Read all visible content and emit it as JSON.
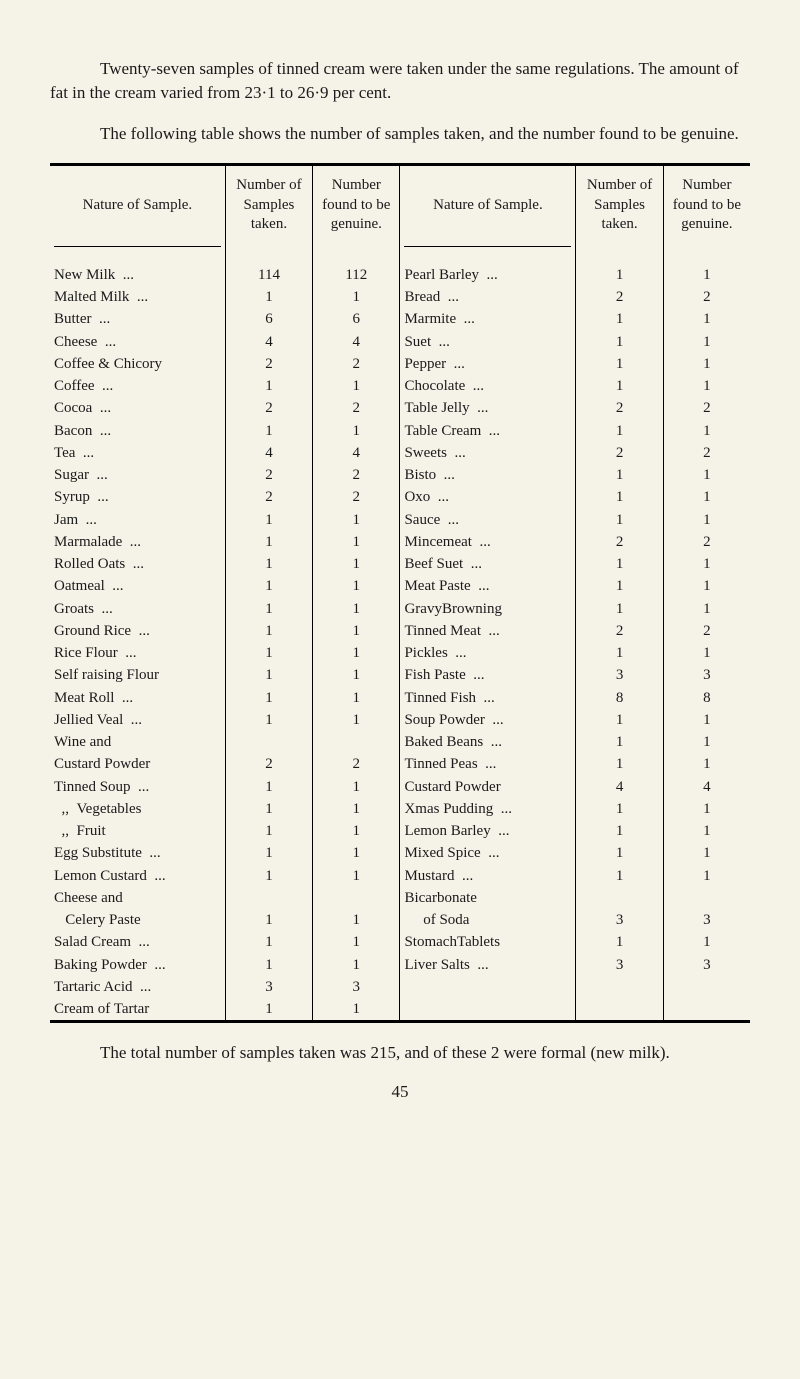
{
  "intro1": "Twenty-seven samples of tinned cream were taken under the same regulations. The amount of fat in the cream varied from 23·1 to 26·9 per cent.",
  "intro2": "The following table shows the number of samples taken, and the number found to be genuine.",
  "headers": {
    "nature": "Nature of Sample.",
    "samples": "Number of Samples taken.",
    "found": "Number found to be genuine."
  },
  "left_rows": [
    {
      "n": "New Milk",
      "s": "114",
      "f": "112"
    },
    {
      "n": "Malted Milk",
      "s": "1",
      "f": "1"
    },
    {
      "n": "Butter",
      "s": "6",
      "f": "6"
    },
    {
      "n": "Cheese",
      "s": "4",
      "f": "4"
    },
    {
      "n": "Coffee & Chicory",
      "s": "2",
      "f": "2"
    },
    {
      "n": "Coffee",
      "s": "1",
      "f": "1"
    },
    {
      "n": "Cocoa",
      "s": "2",
      "f": "2"
    },
    {
      "n": "Bacon",
      "s": "1",
      "f": "1"
    },
    {
      "n": "Tea",
      "s": "4",
      "f": "4"
    },
    {
      "n": "Sugar",
      "s": "2",
      "f": "2"
    },
    {
      "n": "Syrup",
      "s": "2",
      "f": "2"
    },
    {
      "n": "Jam",
      "s": "1",
      "f": "1"
    },
    {
      "n": "Marmalade",
      "s": "1",
      "f": "1"
    },
    {
      "n": "Rolled Oats",
      "s": "1",
      "f": "1"
    },
    {
      "n": "Oatmeal",
      "s": "1",
      "f": "1"
    },
    {
      "n": "Groats",
      "s": "1",
      "f": "1"
    },
    {
      "n": "Ground Rice",
      "s": "1",
      "f": "1"
    },
    {
      "n": "Rice Flour",
      "s": "1",
      "f": "1"
    },
    {
      "n": "Self raising Flour",
      "s": "1",
      "f": "1"
    },
    {
      "n": "Meat Roll",
      "s": "1",
      "f": "1"
    },
    {
      "n": "Jellied Veal",
      "s": "1",
      "f": "1"
    },
    {
      "n": "Wine and",
      "s": "",
      "f": ""
    },
    {
      "n": "Custard Powder",
      "s": "2",
      "f": "2"
    },
    {
      "n": "Tinned Soup",
      "s": "1",
      "f": "1"
    },
    {
      "n": "  ,,  Vegetables",
      "s": "1",
      "f": "1"
    },
    {
      "n": "  ,,  Fruit",
      "s": "1",
      "f": "1"
    },
    {
      "n": "Egg Substitute",
      "s": "1",
      "f": "1"
    },
    {
      "n": "Lemon Custard",
      "s": "1",
      "f": "1"
    },
    {
      "n": "Cheese and",
      "s": "",
      "f": ""
    },
    {
      "n": "   Celery Paste",
      "s": "1",
      "f": "1"
    },
    {
      "n": "Salad Cream",
      "s": "1",
      "f": "1"
    },
    {
      "n": "Baking Powder",
      "s": "1",
      "f": "1"
    },
    {
      "n": "Tartaric Acid",
      "s": "3",
      "f": "3"
    },
    {
      "n": "Cream of Tartar",
      "s": "1",
      "f": "1"
    }
  ],
  "right_rows": [
    {
      "n": "Pearl Barley",
      "s": "1",
      "f": "1"
    },
    {
      "n": "Bread",
      "s": "2",
      "f": "2"
    },
    {
      "n": "Marmite",
      "s": "1",
      "f": "1"
    },
    {
      "n": "Suet",
      "s": "1",
      "f": "1"
    },
    {
      "n": "Pepper",
      "s": "1",
      "f": "1"
    },
    {
      "n": "Chocolate",
      "s": "1",
      "f": "1"
    },
    {
      "n": "Table Jelly",
      "s": "2",
      "f": "2"
    },
    {
      "n": "Table Cream",
      "s": "1",
      "f": "1"
    },
    {
      "n": "Sweets",
      "s": "2",
      "f": "2"
    },
    {
      "n": "Bisto",
      "s": "1",
      "f": "1"
    },
    {
      "n": "Oxo",
      "s": "1",
      "f": "1"
    },
    {
      "n": "Sauce",
      "s": "1",
      "f": "1"
    },
    {
      "n": "Mincemeat",
      "s": "2",
      "f": "2"
    },
    {
      "n": "Beef Suet",
      "s": "1",
      "f": "1"
    },
    {
      "n": "Meat Paste",
      "s": "1",
      "f": "1"
    },
    {
      "n": "GravyBrowning",
      "s": "1",
      "f": "1"
    },
    {
      "n": "Tinned Meat",
      "s": "2",
      "f": "2"
    },
    {
      "n": "Pickles",
      "s": "1",
      "f": "1"
    },
    {
      "n": "Fish Paste",
      "s": "3",
      "f": "3"
    },
    {
      "n": "Tinned Fish",
      "s": "8",
      "f": "8"
    },
    {
      "n": "Soup Powder",
      "s": "1",
      "f": "1"
    },
    {
      "n": "Baked Beans",
      "s": "1",
      "f": "1"
    },
    {
      "n": "Tinned Peas",
      "s": "1",
      "f": "1"
    },
    {
      "n": "Custard Powder",
      "s": "4",
      "f": "4"
    },
    {
      "n": "Xmas Pudding",
      "s": "1",
      "f": "1"
    },
    {
      "n": "Lemon Barley",
      "s": "1",
      "f": "1"
    },
    {
      "n": "Mixed Spice",
      "s": "1",
      "f": "1"
    },
    {
      "n": "Mustard",
      "s": "1",
      "f": "1"
    },
    {
      "n": "Bicarbonate",
      "s": "",
      "f": ""
    },
    {
      "n": "     of Soda",
      "s": "3",
      "f": "3"
    },
    {
      "n": "StomachTablets",
      "s": "1",
      "f": "1"
    },
    {
      "n": "Liver Salts",
      "s": "3",
      "f": "3"
    },
    {
      "n": "",
      "s": "",
      "f": ""
    },
    {
      "n": "",
      "s": "",
      "f": ""
    }
  ],
  "bottom": "The total number of samples taken was 215, and of these 2 were formal (new milk).",
  "page": "45",
  "style": {
    "background": "#f5f2e8",
    "text_color": "#1a1a1a",
    "body_fontsize": 17,
    "table_fontsize": 15,
    "font_family": "Georgia, Times New Roman, serif"
  }
}
